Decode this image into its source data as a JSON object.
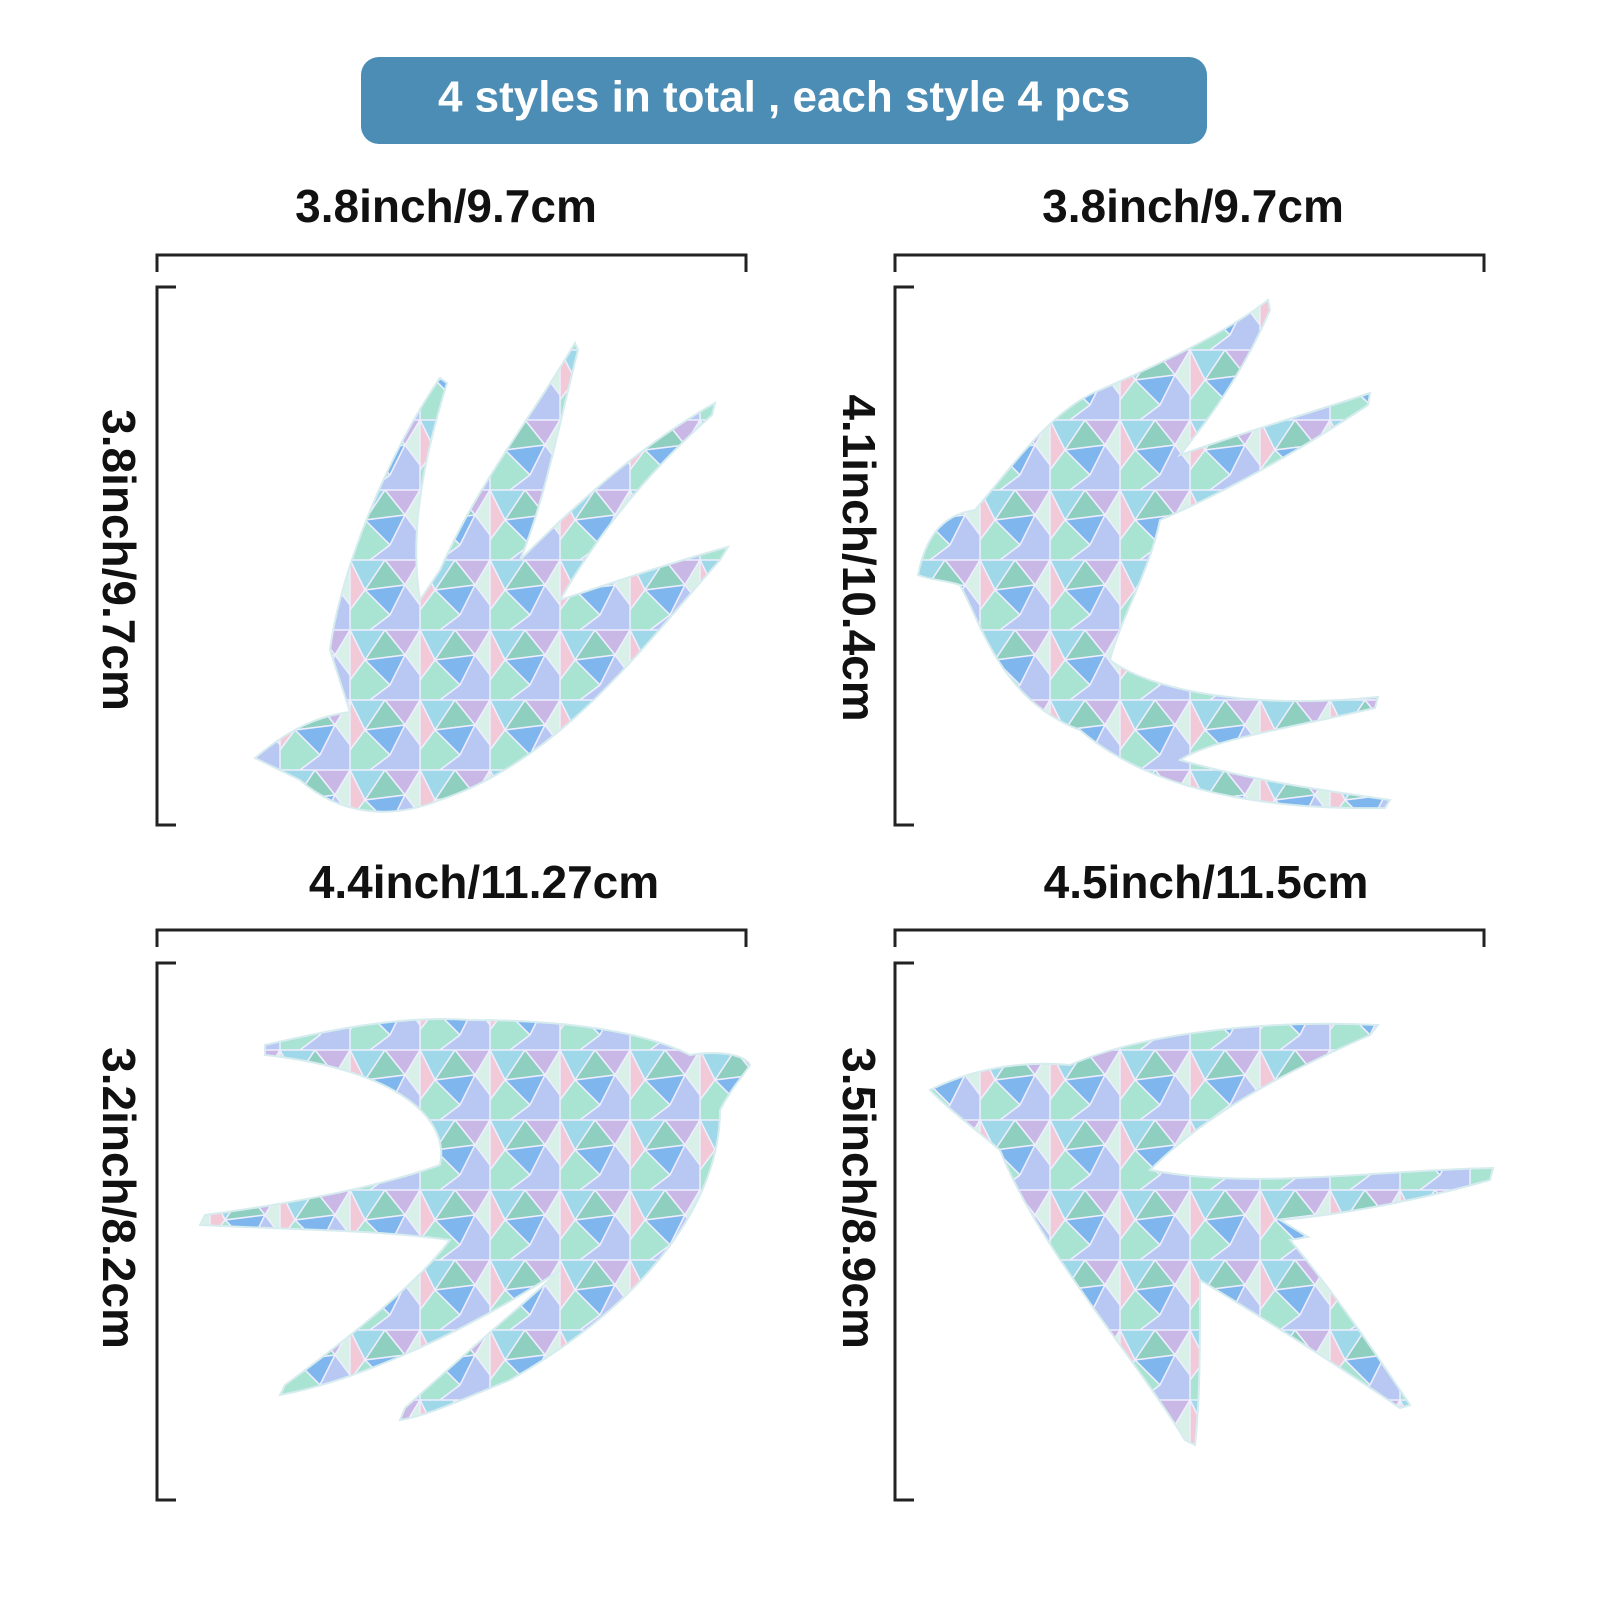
{
  "banner": "4 styles in total , each style 4 pcs",
  "items": [
    {
      "width": "3.8inch/9.7cm",
      "height": "3.8inch/9.7cm"
    },
    {
      "width": "3.8inch/9.7cm",
      "height": "4.1inch/10.4cm"
    },
    {
      "width": "4.4inch/11.27cm",
      "height": "3.2inch/8.2cm"
    },
    {
      "width": "4.5inch/11.5cm",
      "height": "3.5inch/8.9cm"
    }
  ]
}
